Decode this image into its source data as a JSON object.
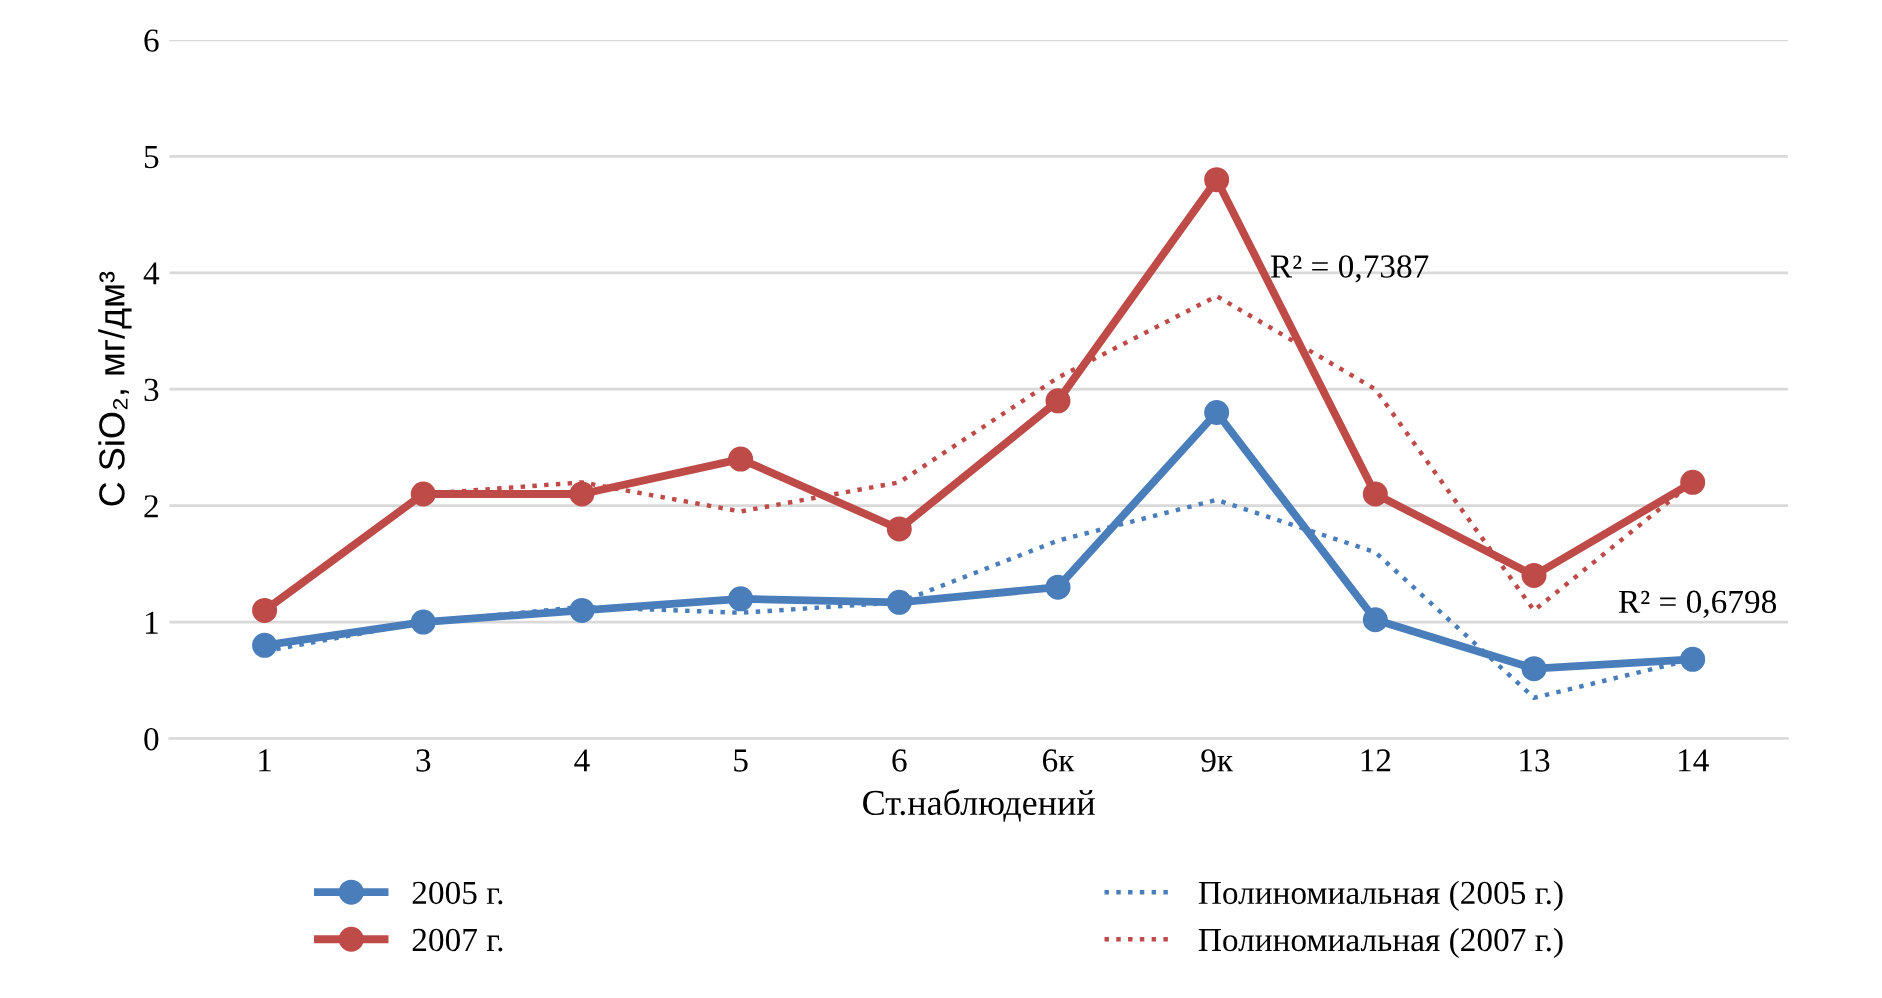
{
  "chart_data": {
    "type": "line",
    "xlabel": "Ст.наблюдений",
    "ylabel": "C SiO₂, мг/дм³",
    "categories": [
      "1",
      "3",
      "4",
      "5",
      "6",
      "6к",
      "9к",
      "12",
      "13",
      "14"
    ],
    "series": [
      {
        "name": "2005 г.",
        "color": "#4a7ebb",
        "values": [
          0.8,
          1.0,
          1.1,
          1.2,
          1.17,
          1.3,
          2.8,
          1.02,
          0.6,
          0.68
        ],
        "marker": "circle",
        "line_style": "solid"
      },
      {
        "name": "2007 г.",
        "color": "#be4b48",
        "values": [
          1.1,
          2.1,
          2.1,
          2.4,
          1.8,
          2.9,
          4.8,
          2.1,
          1.4,
          2.2
        ],
        "marker": "circle",
        "line_style": "solid"
      },
      {
        "name": "Полиномиальная (2005 г.)",
        "color": "#4a7ebb",
        "values": [
          0.75,
          1.0,
          1.13,
          1.08,
          1.17,
          1.7,
          2.05,
          1.6,
          0.35,
          0.68
        ],
        "marker": "none",
        "line_style": "dotted"
      },
      {
        "name": "Полиномиальная (2007 г.)",
        "color": "#be4b48",
        "values": [
          1.1,
          2.1,
          2.2,
          1.95,
          2.2,
          3.1,
          3.8,
          3.0,
          1.1,
          2.2
        ],
        "marker": "none",
        "line_style": "dotted"
      }
    ],
    "ylim": [
      0,
      6
    ],
    "yticks": [
      0,
      1,
      2,
      3,
      4,
      5,
      6
    ],
    "grid": "y",
    "legend": "bottom",
    "annotations": [
      "R² = 0,7387",
      "R² = 0,6798"
    ]
  }
}
